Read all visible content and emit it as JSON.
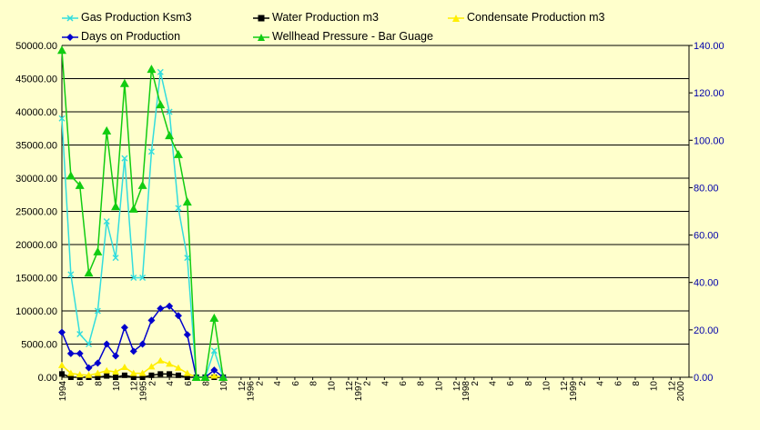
{
  "colors": {
    "background": "#ffffcc",
    "grid": "#000000",
    "gas": "#33dddd",
    "water": "#000000",
    "condensate": "#ffee00",
    "days": "#0000cc",
    "pressure": "#11cc11",
    "right_axis": "#0000aa"
  },
  "legend": [
    {
      "key": "gas",
      "label": "Gas Production Ksm3",
      "marker": "x"
    },
    {
      "key": "water",
      "label": "Water Production m3",
      "marker": "square"
    },
    {
      "key": "condensate",
      "label": "Condensate Production m3",
      "marker": "triangle"
    },
    {
      "key": "days",
      "label": "Days on Production",
      "marker": "diamond"
    },
    {
      "key": "pressure",
      "label": "Wellhead Pressure - Bar Guage",
      "marker": "triangle"
    }
  ],
  "chart_data": {
    "type": "line",
    "title": "",
    "xlabel": "",
    "ylabel": "",
    "y_left": {
      "min": 0,
      "max": 50000,
      "step": 5000,
      "ticks": [
        "0.00",
        "5000.00",
        "10000.00",
        "15000.00",
        "20000.00",
        "25000.00",
        "30000.00",
        "35000.00",
        "40000.00",
        "45000.00",
        "50000.00"
      ]
    },
    "y_right": {
      "min": 0,
      "max": 140,
      "step": 20,
      "ticks": [
        "0.00",
        "20.00",
        "40.00",
        "60.00",
        "80.00",
        "100.00",
        "120.00",
        "140.00"
      ]
    },
    "grid": "horizontal",
    "x_tick_labels": [
      {
        "month": 0,
        "label": "1994"
      },
      {
        "month": 0,
        "label": "4"
      },
      {
        "month": 2,
        "label": "6"
      },
      {
        "month": 4,
        "label": "8"
      },
      {
        "month": 6,
        "label": "10"
      },
      {
        "month": 8,
        "label": "12"
      },
      {
        "month": 9,
        "label": "1995"
      },
      {
        "month": 10,
        "label": "2"
      },
      {
        "month": 12,
        "label": "4"
      },
      {
        "month": 14,
        "label": "6"
      },
      {
        "month": 16,
        "label": "8"
      },
      {
        "month": 18,
        "label": "10"
      },
      {
        "month": 20,
        "label": "12"
      },
      {
        "month": 21,
        "label": "1996"
      },
      {
        "month": 22,
        "label": "2"
      },
      {
        "month": 24,
        "label": "4"
      },
      {
        "month": 26,
        "label": "6"
      },
      {
        "month": 28,
        "label": "8"
      },
      {
        "month": 30,
        "label": "10"
      },
      {
        "month": 32,
        "label": "12"
      },
      {
        "month": 33,
        "label": "1997"
      },
      {
        "month": 34,
        "label": "2"
      },
      {
        "month": 36,
        "label": "4"
      },
      {
        "month": 38,
        "label": "6"
      },
      {
        "month": 40,
        "label": "8"
      },
      {
        "month": 42,
        "label": "10"
      },
      {
        "month": 44,
        "label": "12"
      },
      {
        "month": 45,
        "label": "1998"
      },
      {
        "month": 46,
        "label": "2"
      },
      {
        "month": 48,
        "label": "4"
      },
      {
        "month": 50,
        "label": "6"
      },
      {
        "month": 52,
        "label": "8"
      },
      {
        "month": 54,
        "label": "10"
      },
      {
        "month": 56,
        "label": "12"
      },
      {
        "month": 57,
        "label": "1999"
      },
      {
        "month": 58,
        "label": "2"
      },
      {
        "month": 60,
        "label": "4"
      },
      {
        "month": 62,
        "label": "6"
      },
      {
        "month": 64,
        "label": "8"
      },
      {
        "month": 66,
        "label": "10"
      },
      {
        "month": 68,
        "label": "12"
      },
      {
        "month": 69,
        "label": "2000"
      }
    ],
    "x_month_span": [
      0,
      70
    ],
    "series": [
      {
        "key": "gas",
        "name": "Gas Production Ksm3",
        "axis": "left",
        "x": [
          0,
          1,
          2,
          3,
          4,
          5,
          6,
          7,
          8,
          9,
          10,
          11,
          12,
          13,
          14,
          15,
          16,
          17,
          18
        ],
        "values": [
          39000,
          15500,
          6500,
          5000,
          10000,
          23500,
          18000,
          33000,
          15000,
          15000,
          34000,
          46000,
          40000,
          25500,
          18000,
          0,
          0,
          4000,
          0
        ]
      },
      {
        "key": "water",
        "name": "Water Production m3",
        "axis": "left",
        "x": [
          0,
          1,
          2,
          3,
          4,
          5,
          6,
          7,
          8,
          9,
          10,
          11,
          12,
          13,
          14,
          15,
          16,
          17,
          18
        ],
        "values": [
          500,
          0,
          0,
          0,
          0,
          200,
          0,
          300,
          0,
          0,
          300,
          500,
          500,
          300,
          0,
          0,
          0,
          0,
          0
        ]
      },
      {
        "key": "condensate",
        "name": "Condensate Production m3",
        "axis": "left",
        "x": [
          0,
          1,
          2,
          3,
          4,
          5,
          6,
          7,
          8,
          9,
          10,
          11,
          12,
          13,
          14,
          15,
          16,
          17,
          18
        ],
        "values": [
          1800,
          600,
          400,
          300,
          600,
          1000,
          800,
          1500,
          600,
          600,
          1600,
          2500,
          2000,
          1400,
          600,
          0,
          0,
          200,
          0
        ]
      },
      {
        "key": "days",
        "name": "Days on Production",
        "axis": "right",
        "x": [
          0,
          1,
          2,
          3,
          4,
          5,
          6,
          7,
          8,
          9,
          10,
          11,
          12,
          13,
          14,
          15,
          16,
          17,
          18
        ],
        "values": [
          19,
          10,
          10,
          4,
          6,
          14,
          9,
          21,
          11,
          14,
          24,
          29,
          30,
          26,
          18,
          0,
          0,
          3,
          0
        ]
      },
      {
        "key": "pressure",
        "name": "Wellhead Pressure - Bar Guage",
        "axis": "right",
        "x": [
          0,
          1,
          2,
          3,
          4,
          5,
          6,
          7,
          8,
          9,
          10,
          11,
          12,
          13,
          14,
          15,
          16,
          17,
          18
        ],
        "values": [
          138,
          85,
          81,
          44,
          53,
          104,
          72,
          124,
          71,
          81,
          130,
          115,
          102,
          94,
          74,
          0,
          0,
          25,
          0
        ]
      }
    ]
  }
}
